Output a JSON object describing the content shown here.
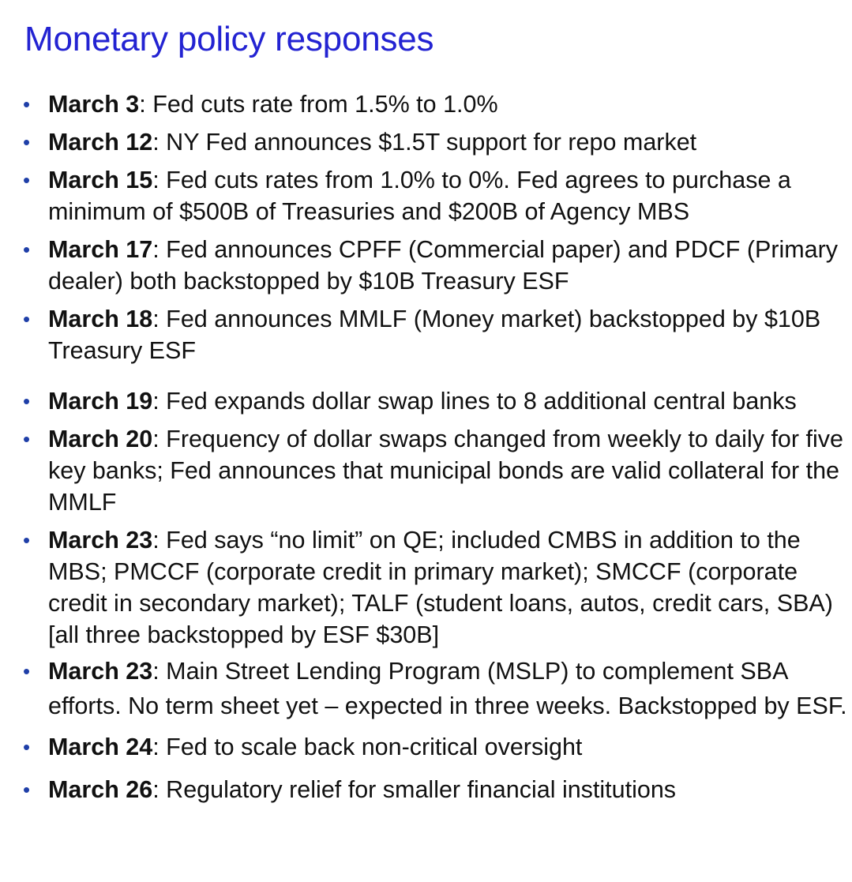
{
  "slide": {
    "title": "Monetary policy responses",
    "bullet_char": "•",
    "items": [
      {
        "date": "March 3",
        "text": ": Fed cuts rate from 1.5% to 1.0%"
      },
      {
        "date": "March 12",
        "text": ": NY Fed announces $1.5T support for repo market"
      },
      {
        "date": "March 15",
        "text": ": Fed cuts rates from 1.0% to 0%. Fed agrees to purchase a minimum of $500B of Treasuries and $200B of Agency MBS"
      },
      {
        "date": "March 17",
        "text": ": Fed announces CPFF (Commercial paper) and PDCF (Primary dealer) both backstopped by $10B Treasury ESF"
      },
      {
        "date": "March 18",
        "text": ": Fed announces MMLF (Money market) backstopped by $10B Treasury ESF"
      },
      {
        "date": "March 19",
        "text": ": Fed expands dollar swap lines to 8 additional central banks"
      },
      {
        "date": "March 20",
        "text": ": Frequency of dollar swaps changed from weekly to daily for five key banks; Fed announces that municipal bonds are valid collateral for the MMLF"
      },
      {
        "date": "March 23",
        "text": ": Fed says “no limit” on QE; included CMBS in addition to the MBS; PMCCF (corporate credit in primary market); SMCCF (corporate credit in secondary market); TALF (student loans, autos, credit cars, SBA) [all three backstopped by ESF $30B]"
      },
      {
        "date": "March 23",
        "text": ": Main Street Lending Program (MSLP) to complement SBA efforts.  No term sheet yet – expected in three weeks. Backstopped by ESF."
      },
      {
        "date": "March 24",
        "text": ": Fed to scale back non-critical oversight"
      },
      {
        "date": "March 26",
        "text": ": Regulatory relief for smaller financial institutions"
      }
    ]
  },
  "colors": {
    "title": "#2323d2",
    "bullet": "#1f3fa8",
    "text": "#111111"
  }
}
